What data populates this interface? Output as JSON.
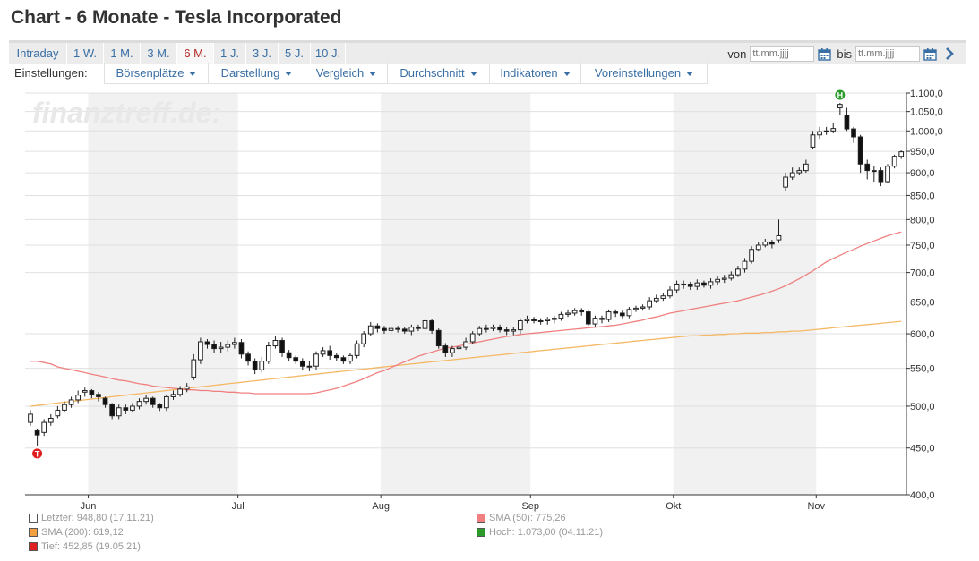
{
  "page": {
    "title": "Chart - 6 Monate - Tesla Incorporated"
  },
  "periods": [
    "Intraday",
    "1 W.",
    "1 M.",
    "3 M.",
    "6 M.",
    "1 J.",
    "3 J.",
    "5 J.",
    "10 J."
  ],
  "active_period": "6 M.",
  "daterange": {
    "from_label": "von",
    "to_label": "bis",
    "from_placeholder": "tt.mm.jjjj",
    "to_placeholder": "tt.mm.jjjj"
  },
  "settings": {
    "label": "Einstellungen:",
    "menus": [
      "Börsenplätze",
      "Darstellung",
      "Vergleich",
      "Durchschnitt",
      "Indikatoren",
      "Voreinstellungen"
    ]
  },
  "watermark": "finanztreff.de:",
  "colors": {
    "sma50": "#f08080",
    "sma200": "#f5b866",
    "low_marker": "#e02020",
    "high_marker": "#2a9a2a",
    "link": "#3a6fa5"
  },
  "icons": {
    "calendar": "calendar-icon",
    "next": "chevron-right-icon"
  },
  "legend": [
    {
      "label": "Letzter: 948,80 (17.11.21)",
      "color": "#ffffff"
    },
    {
      "label": "SMA (50): 775,26",
      "color": "#f08080"
    },
    {
      "label": "SMA (200): 619,12",
      "color": "#f5a040"
    },
    {
      "label": "Hoch: 1.073,00 (04.11.21)",
      "color": "#2a9a2a"
    },
    {
      "label": "Tief: 452,85 (19.05.21)",
      "color": "#e02020"
    }
  ],
  "chart_data": {
    "type": "candlestick",
    "y_scale": "log",
    "ylim": [
      400,
      1100
    ],
    "y_ticks": [
      "1.100,0",
      "1.050,0",
      "1.000,0",
      "950,0",
      "900,0",
      "850,0",
      "800,0",
      "750,0",
      "700,0",
      "650,0",
      "600,0",
      "550,0",
      "500,0",
      "450,0",
      "400,0"
    ],
    "y_tick_values": [
      1100,
      1050,
      1000,
      950,
      900,
      850,
      800,
      750,
      700,
      650,
      600,
      550,
      500,
      450,
      400
    ],
    "x_labels": [
      "Jun",
      "Jul",
      "Aug",
      "Sep",
      "Okt",
      "Nov"
    ],
    "month_boundaries": [
      "2021-06-01",
      "2021-07-01",
      "2021-08-02",
      "2021-09-01",
      "2021-10-01",
      "2021-11-01"
    ],
    "dates": [
      "2021-05-18",
      "2021-05-19",
      "2021-05-20",
      "2021-05-21",
      "2021-05-24",
      "2021-05-25",
      "2021-05-26",
      "2021-05-27",
      "2021-05-28",
      "2021-06-01",
      "2021-06-02",
      "2021-06-03",
      "2021-06-04",
      "2021-06-07",
      "2021-06-08",
      "2021-06-09",
      "2021-06-10",
      "2021-06-11",
      "2021-06-14",
      "2021-06-15",
      "2021-06-16",
      "2021-06-17",
      "2021-06-18",
      "2021-06-21",
      "2021-06-22",
      "2021-06-23",
      "2021-06-24",
      "2021-06-25",
      "2021-06-28",
      "2021-06-29",
      "2021-06-30",
      "2021-07-01",
      "2021-07-02",
      "2021-07-06",
      "2021-07-07",
      "2021-07-08",
      "2021-07-09",
      "2021-07-12",
      "2021-07-13",
      "2021-07-14",
      "2021-07-15",
      "2021-07-16",
      "2021-07-19",
      "2021-07-20",
      "2021-07-21",
      "2021-07-22",
      "2021-07-23",
      "2021-07-26",
      "2021-07-27",
      "2021-07-28",
      "2021-07-29",
      "2021-07-30",
      "2021-08-02",
      "2021-08-03",
      "2021-08-04",
      "2021-08-05",
      "2021-08-06",
      "2021-08-09",
      "2021-08-10",
      "2021-08-11",
      "2021-08-12",
      "2021-08-13",
      "2021-08-16",
      "2021-08-17",
      "2021-08-18",
      "2021-08-19",
      "2021-08-20",
      "2021-08-23",
      "2021-08-24",
      "2021-08-25",
      "2021-08-26",
      "2021-08-27",
      "2021-08-30",
      "2021-08-31",
      "2021-09-01",
      "2021-09-02",
      "2021-09-03",
      "2021-09-07",
      "2021-09-08",
      "2021-09-09",
      "2021-09-10",
      "2021-09-13",
      "2021-09-14",
      "2021-09-15",
      "2021-09-16",
      "2021-09-17",
      "2021-09-20",
      "2021-09-21",
      "2021-09-22",
      "2021-09-23",
      "2021-09-24",
      "2021-09-27",
      "2021-09-28",
      "2021-09-29",
      "2021-09-30",
      "2021-10-01",
      "2021-10-04",
      "2021-10-05",
      "2021-10-06",
      "2021-10-07",
      "2021-10-08",
      "2021-10-11",
      "2021-10-12",
      "2021-10-13",
      "2021-10-14",
      "2021-10-15",
      "2021-10-18",
      "2021-10-19",
      "2021-10-20",
      "2021-10-21",
      "2021-10-22",
      "2021-10-25",
      "2021-10-26",
      "2021-10-27",
      "2021-10-28",
      "2021-10-29",
      "2021-11-01",
      "2021-11-02",
      "2021-11-03",
      "2021-11-04",
      "2021-11-05",
      "2021-11-08",
      "2021-11-09",
      "2021-11-10",
      "2021-11-11",
      "2021-11-12",
      "2021-11-15",
      "2021-11-16",
      "2021-11-17"
    ],
    "close": [
      490,
      465,
      480,
      485,
      495,
      502,
      508,
      514,
      520,
      515,
      512,
      502,
      488,
      498,
      495,
      500,
      506,
      510,
      502,
      498,
      512,
      515,
      522,
      525,
      562,
      588,
      584,
      578,
      580,
      584,
      587,
      570,
      560,
      548,
      560,
      582,
      590,
      572,
      565,
      560,
      553,
      553,
      570,
      575,
      568,
      565,
      560,
      568,
      585,
      600,
      612,
      608,
      605,
      608,
      607,
      604,
      610,
      608,
      620,
      605,
      582,
      572,
      578,
      580,
      588,
      600,
      608,
      608,
      610,
      606,
      604,
      606,
      620,
      622,
      620,
      620,
      622,
      624,
      630,
      632,
      636,
      634,
      615,
      624,
      622,
      634,
      632,
      628,
      638,
      640,
      642,
      652,
      656,
      660,
      670,
      680,
      680,
      676,
      682,
      678,
      684,
      688,
      690,
      696,
      706,
      720,
      742,
      750,
      756,
      752,
      768,
      890,
      900,
      905,
      920,
      990,
      998,
      1000,
      1006,
      1069,
      1005,
      985,
      920,
      905,
      905,
      880,
      915,
      938,
      948.8
    ],
    "open": [
      480,
      470,
      468,
      480,
      488,
      495,
      502,
      508,
      518,
      520,
      515,
      510,
      502,
      488,
      498,
      495,
      500,
      506,
      510,
      502,
      498,
      512,
      515,
      522,
      538,
      562,
      588,
      584,
      578,
      580,
      584,
      587,
      570,
      560,
      548,
      560,
      582,
      590,
      572,
      565,
      560,
      553,
      553,
      570,
      575,
      568,
      565,
      560,
      568,
      585,
      600,
      612,
      608,
      605,
      608,
      607,
      604,
      610,
      608,
      620,
      605,
      582,
      572,
      578,
      580,
      588,
      600,
      608,
      608,
      610,
      606,
      604,
      606,
      620,
      622,
      620,
      620,
      622,
      624,
      630,
      632,
      636,
      634,
      615,
      624,
      622,
      634,
      632,
      628,
      638,
      640,
      642,
      652,
      656,
      660,
      670,
      680,
      680,
      676,
      682,
      678,
      684,
      688,
      690,
      696,
      706,
      720,
      742,
      750,
      756,
      760,
      868,
      890,
      900,
      905,
      960,
      990,
      998,
      1000,
      1060,
      1040,
      1005,
      985,
      920,
      905,
      905,
      880,
      915,
      938
    ],
    "high": [
      495,
      472,
      484,
      490,
      500,
      506,
      512,
      520,
      524,
      522,
      518,
      512,
      504,
      502,
      502,
      504,
      510,
      514,
      512,
      504,
      515,
      520,
      526,
      530,
      570,
      594,
      592,
      590,
      588,
      590,
      594,
      592,
      574,
      564,
      566,
      588,
      596,
      594,
      576,
      568,
      564,
      560,
      574,
      580,
      582,
      572,
      568,
      572,
      590,
      604,
      618,
      616,
      612,
      612,
      612,
      610,
      614,
      614,
      625,
      622,
      608,
      586,
      582,
      586,
      594,
      604,
      612,
      614,
      614,
      614,
      610,
      610,
      624,
      628,
      626,
      624,
      626,
      628,
      634,
      638,
      640,
      640,
      638,
      628,
      628,
      638,
      638,
      636,
      642,
      644,
      646,
      658,
      662,
      664,
      676,
      686,
      686,
      684,
      688,
      686,
      690,
      694,
      696,
      702,
      712,
      726,
      748,
      756,
      762,
      760,
      800,
      900,
      912,
      912,
      930,
      1000,
      1010,
      1010,
      1020,
      1073,
      1060,
      1010,
      990,
      930,
      915,
      912,
      920,
      942,
      952
    ],
    "low": [
      476,
      452.85,
      464,
      476,
      485,
      492,
      498,
      504,
      512,
      510,
      506,
      498,
      484,
      484,
      490,
      492,
      496,
      502,
      498,
      494,
      494,
      508,
      512,
      518,
      534,
      556,
      578,
      572,
      572,
      574,
      578,
      564,
      554,
      542,
      544,
      556,
      578,
      566,
      560,
      556,
      548,
      546,
      548,
      566,
      562,
      560,
      556,
      556,
      564,
      580,
      596,
      602,
      600,
      600,
      602,
      600,
      598,
      604,
      604,
      600,
      578,
      566,
      566,
      574,
      576,
      584,
      596,
      602,
      604,
      602,
      598,
      598,
      600,
      616,
      616,
      614,
      614,
      616,
      620,
      626,
      628,
      628,
      612,
      610,
      616,
      618,
      626,
      624,
      624,
      634,
      636,
      638,
      648,
      652,
      656,
      664,
      672,
      670,
      670,
      674,
      672,
      678,
      682,
      686,
      692,
      700,
      716,
      738,
      746,
      744,
      754,
      860,
      884,
      894,
      900,
      955,
      980,
      990,
      994,
      1040,
      1000,
      970,
      900,
      885,
      880,
      870,
      878,
      910,
      932
    ],
    "sma50": [
      560,
      560,
      558,
      556,
      552,
      550,
      548,
      546,
      544,
      542,
      540,
      538,
      536,
      534,
      533,
      531,
      529,
      528,
      526,
      525,
      524,
      523,
      522,
      521,
      521,
      520,
      520,
      519,
      519,
      518,
      518,
      517,
      517,
      516,
      516,
      516,
      516,
      516,
      516,
      516,
      516,
      516,
      517,
      519,
      521,
      523,
      526,
      529,
      532,
      536,
      540,
      544,
      547,
      551,
      555,
      559,
      563,
      567,
      570,
      573,
      576,
      579,
      580,
      582,
      584,
      586,
      588,
      590,
      592,
      594,
      596,
      597,
      599,
      600,
      601,
      602,
      603,
      604,
      605,
      606,
      607,
      608,
      609,
      610,
      611,
      612,
      613,
      615,
      617,
      619,
      621,
      624,
      626,
      629,
      632,
      634,
      636,
      638,
      640,
      642,
      644,
      646,
      648,
      650,
      652,
      655,
      658,
      661,
      664,
      668,
      672,
      677,
      683,
      689,
      696,
      703,
      711,
      719,
      725,
      731,
      737,
      742,
      748,
      753,
      758,
      763,
      768,
      772,
      775.26
    ],
    "sma200": [
      500,
      501,
      502,
      503,
      504,
      505,
      506,
      507,
      508,
      509,
      510,
      511,
      512,
      513,
      514,
      515,
      516,
      517,
      518,
      519,
      520,
      521,
      522,
      523,
      524,
      525,
      526,
      527,
      528,
      529,
      530,
      531,
      532,
      533,
      534,
      535,
      536,
      537,
      538,
      539,
      540,
      541,
      542,
      543,
      544,
      545,
      546,
      547,
      548,
      549,
      550,
      551,
      552,
      553,
      554,
      555,
      556,
      557,
      558,
      559,
      560,
      561,
      562,
      563,
      564,
      565,
      566,
      567,
      568,
      569,
      570,
      571,
      572,
      573,
      574,
      575,
      576,
      577,
      578,
      579,
      580,
      581,
      582,
      583,
      584,
      585,
      586,
      587,
      588,
      589,
      590,
      591,
      592,
      593,
      594,
      595,
      596,
      597,
      597,
      598,
      598,
      599,
      599,
      600,
      600,
      601,
      601,
      601,
      602,
      602,
      603,
      603,
      604,
      604,
      605,
      606,
      607,
      608,
      609,
      610,
      611,
      612,
      613,
      614,
      615,
      616,
      617,
      618,
      619.12
    ],
    "low_marker_label": "T",
    "high_marker_label": "H"
  }
}
